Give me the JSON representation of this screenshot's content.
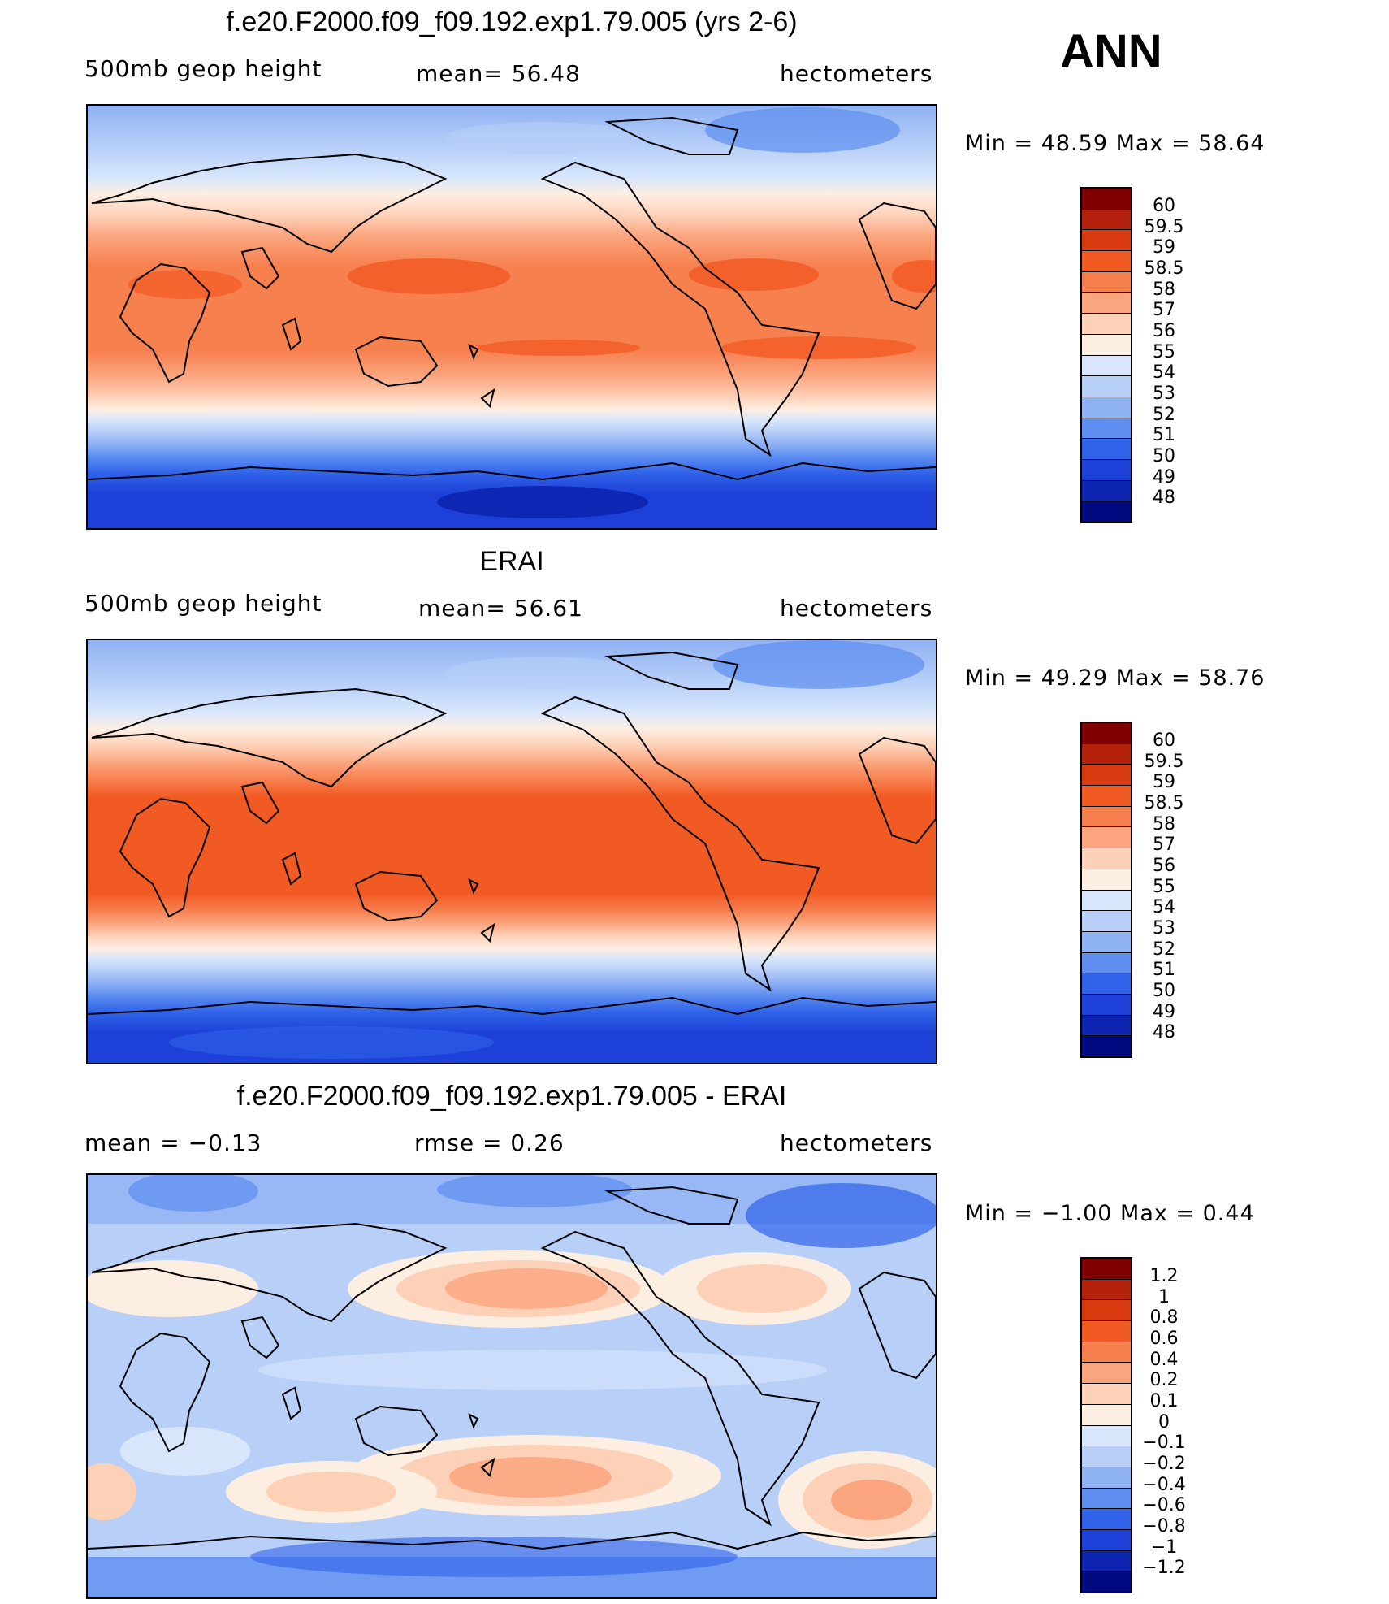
{
  "season": "ANN",
  "panels": [
    {
      "title": "f.e20.F2000.f09_f09.192.exp1.79.005 (yrs 2-6)",
      "left": "500mb  geop  height",
      "center": "mean=   56.48",
      "right": "hectometers",
      "minmax": "Min  =    48.59  Max  =    58.64",
      "colorbar": {
        "labels": [
          "60",
          "59.5",
          "59",
          "58.5",
          "58",
          "57",
          "56",
          "55",
          "54",
          "53",
          "52",
          "51",
          "50",
          "49",
          "48"
        ],
        "colors": [
          "#800000",
          "#b3200c",
          "#d93a10",
          "#f25a24",
          "#f7804f",
          "#fba57e",
          "#fdd1b8",
          "#fdeee2",
          "#d7e6fb",
          "#b8cff8",
          "#8fb2f3",
          "#5d8ef0",
          "#3163ea",
          "#1c40d8",
          "#0d24b0",
          "#000a80"
        ]
      }
    },
    {
      "title": "ERAI",
      "left": "500mb  geop  height",
      "center": "mean=   56.61",
      "right": "hectometers",
      "minmax": "Min  =    49.29  Max  =    58.76",
      "colorbar": {
        "labels": [
          "60",
          "59.5",
          "59",
          "58.5",
          "58",
          "57",
          "56",
          "55",
          "54",
          "53",
          "52",
          "51",
          "50",
          "49",
          "48"
        ],
        "colors": [
          "#800000",
          "#b3200c",
          "#d93a10",
          "#f25a24",
          "#f7804f",
          "#fba57e",
          "#fdd1b8",
          "#fdeee2",
          "#d7e6fb",
          "#b8cff8",
          "#8fb2f3",
          "#5d8ef0",
          "#3163ea",
          "#1c40d8",
          "#0d24b0",
          "#000a80"
        ]
      }
    },
    {
      "title": "f.e20.F2000.f09_f09.192.exp1.79.005 - ERAI",
      "left": "mean  =    −0.13",
      "center": "rmse  =     0.26",
      "right": "hectometers",
      "minmax": "Min  =    −1.00  Max  =     0.44",
      "colorbar": {
        "labels": [
          "1.2",
          "1",
          "0.8",
          "0.6",
          "0.4",
          "0.2",
          "0.1",
          "0",
          "−0.1",
          "−0.2",
          "−0.4",
          "−0.6",
          "−0.8",
          "−1",
          "−1.2"
        ],
        "colors": [
          "#800000",
          "#b3200c",
          "#d93a10",
          "#f25a24",
          "#f7804f",
          "#fba57e",
          "#fdd1b8",
          "#fdeee2",
          "#d7e6fb",
          "#b8cff8",
          "#8fb2f3",
          "#5d8ef0",
          "#3163ea",
          "#1c40d8",
          "#0d24b0",
          "#000a80"
        ]
      }
    }
  ]
}
